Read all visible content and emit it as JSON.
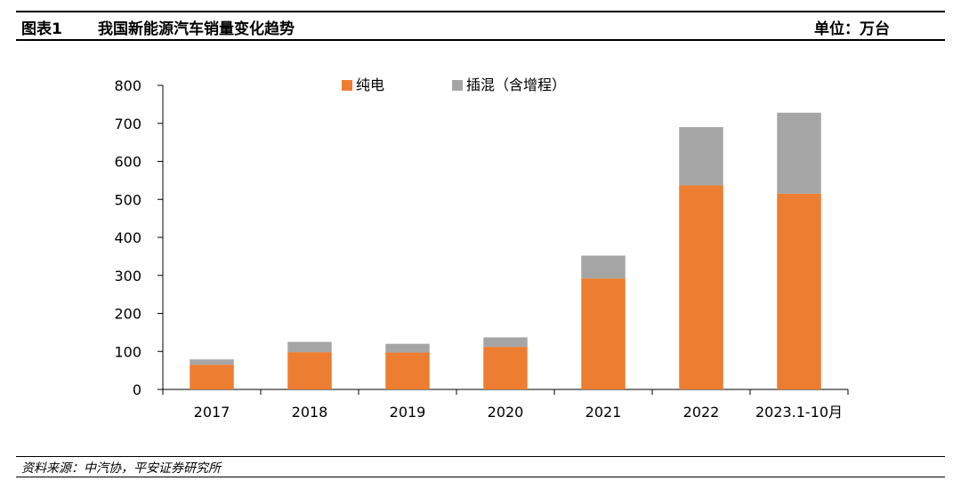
{
  "header": {
    "figure_number": "图表1",
    "title": "我国新能源汽车销量变化趋势",
    "unit": "单位：万台"
  },
  "footer": {
    "source": "资料来源：中汽协，平安证券研究所"
  },
  "chart_data": {
    "type": "bar",
    "stacked": true,
    "categories": [
      "2017",
      "2018",
      "2019",
      "2020",
      "2021",
      "2022",
      "2023.1-10月"
    ],
    "series": [
      {
        "name": "纯电",
        "color": "#ED7D31",
        "values": [
          65,
          98,
          97,
          112,
          292,
          537,
          515
        ]
      },
      {
        "name": "插混（含增程）",
        "color": "#A5A5A5",
        "values": [
          14,
          27,
          23,
          25,
          60,
          153,
          213
        ]
      }
    ],
    "ylim": [
      0,
      800
    ],
    "yticks": [
      "0",
      "100",
      "200",
      "300",
      "400",
      "500",
      "600",
      "700",
      "800"
    ],
    "ytick_values": [
      0,
      100,
      200,
      300,
      400,
      500,
      600,
      700,
      800
    ],
    "grid": false,
    "legend": "top-center",
    "xlabel": "",
    "ylabel": ""
  }
}
